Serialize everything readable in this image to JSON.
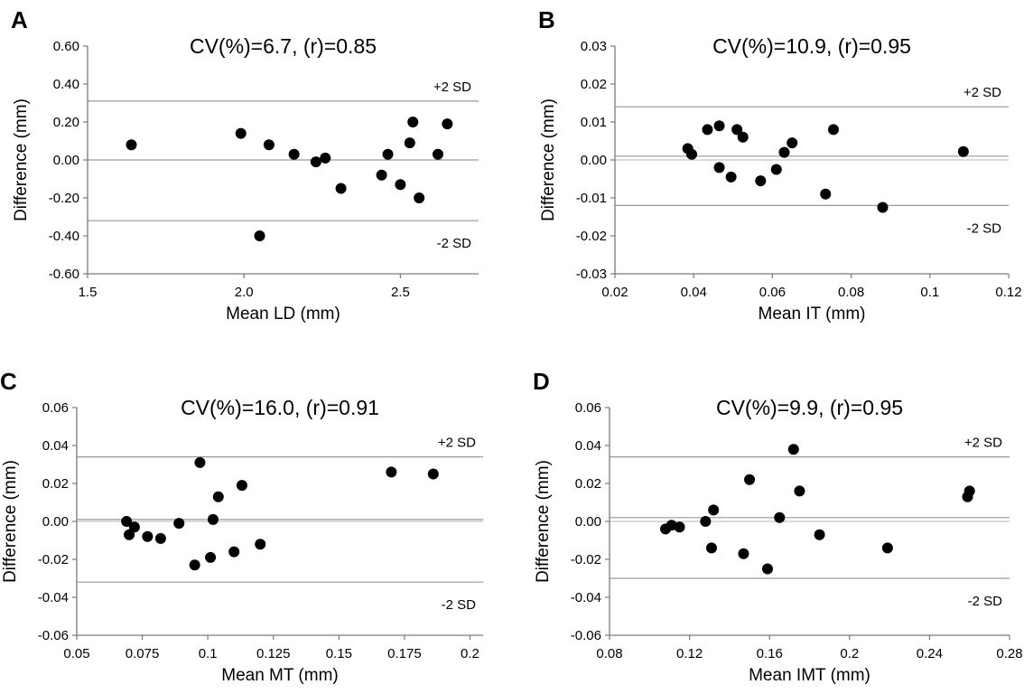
{
  "chart_data": [
    {
      "type": "scatter",
      "panel": "A",
      "title": "CV(%)=6.7, (r)=0.85",
      "xlabel": "Mean LD (mm)",
      "ylabel": "Difference (mm)",
      "xlim": [
        1.5,
        2.75
      ],
      "ylim": [
        -0.6,
        0.6
      ],
      "xticks": [
        1.5,
        2.0,
        2.5
      ],
      "xtick_labels": [
        "1.5",
        "2.0",
        "2.5"
      ],
      "yticks": [
        -0.6,
        -0.4,
        -0.2,
        0,
        0.2,
        0.4,
        0.6
      ],
      "ytick_labels": [
        "-0.60",
        "-0.40",
        "-0.20",
        "0.00",
        "0.20",
        "0.40",
        "0.60"
      ],
      "sd_labels": {
        "upper": "+2 SD",
        "lower": "-2 SD"
      },
      "lines": {
        "upper": 0.31,
        "mean": 0.0,
        "lower": -0.32
      },
      "points": [
        [
          1.64,
          0.08
        ],
        [
          1.99,
          0.14
        ],
        [
          2.05,
          -0.4
        ],
        [
          2.08,
          0.08
        ],
        [
          2.16,
          0.03
        ],
        [
          2.23,
          -0.01
        ],
        [
          2.26,
          0.01
        ],
        [
          2.31,
          -0.15
        ],
        [
          2.44,
          -0.08
        ],
        [
          2.46,
          0.03
        ],
        [
          2.5,
          -0.13
        ],
        [
          2.53,
          0.09
        ],
        [
          2.54,
          0.2
        ],
        [
          2.56,
          -0.2
        ],
        [
          2.62,
          0.03
        ],
        [
          2.65,
          0.19
        ]
      ]
    },
    {
      "type": "scatter",
      "panel": "B",
      "title": "CV(%)=10.9, (r)=0.95",
      "xlabel": "Mean IT (mm)",
      "ylabel": "Difference (mm)",
      "xlim": [
        0.02,
        0.12
      ],
      "ylim": [
        -0.03,
        0.03
      ],
      "xticks": [
        0.02,
        0.04,
        0.06,
        0.08,
        0.1,
        0.12
      ],
      "xtick_labels": [
        "0.02",
        "0.04",
        "0.06",
        "0.08",
        "0.1",
        "0.12"
      ],
      "yticks": [
        -0.03,
        -0.02,
        -0.01,
        0,
        0.01,
        0.02,
        0.03
      ],
      "ytick_labels": [
        "-0.03",
        "-0.02",
        "-0.01",
        "0.00",
        "0.01",
        "0.02",
        "0.03"
      ],
      "sd_labels": {
        "upper": "+2 SD",
        "lower": "-2 SD"
      },
      "lines": {
        "upper": 0.014,
        "mean": 0.001,
        "lower": -0.012
      },
      "points": [
        [
          0.0385,
          0.003
        ],
        [
          0.0395,
          0.0015
        ],
        [
          0.0435,
          0.008
        ],
        [
          0.0465,
          0.009
        ],
        [
          0.0465,
          -0.002
        ],
        [
          0.0495,
          -0.0045
        ],
        [
          0.051,
          0.008
        ],
        [
          0.0525,
          0.006
        ],
        [
          0.057,
          -0.0055
        ],
        [
          0.061,
          -0.0025
        ],
        [
          0.063,
          0.002
        ],
        [
          0.065,
          0.0045
        ],
        [
          0.0735,
          -0.009
        ],
        [
          0.0755,
          0.008
        ],
        [
          0.088,
          -0.0125
        ],
        [
          0.1085,
          0.0022
        ]
      ]
    },
    {
      "type": "scatter",
      "panel": "C",
      "title": "CV(%)=16.0, (r)=0.91",
      "xlabel": "Mean MT (mm)",
      "ylabel": "Difference (mm)",
      "xlim": [
        0.05,
        0.205
      ],
      "ylim": [
        -0.06,
        0.06
      ],
      "xticks": [
        0.05,
        0.075,
        0.1,
        0.125,
        0.15,
        0.175,
        0.2
      ],
      "xtick_labels": [
        "0.05",
        "0.075",
        "0.1",
        "0.125",
        "0.15",
        "0.175",
        "0.2"
      ],
      "yticks": [
        -0.06,
        -0.04,
        -0.02,
        0,
        0.02,
        0.04,
        0.06
      ],
      "ytick_labels": [
        "-0.06",
        "-0.04",
        "-0.02",
        "0.00",
        "0.02",
        "0.04",
        "0.06"
      ],
      "sd_labels": {
        "upper": "+2 SD",
        "lower": "-2 SD"
      },
      "lines": {
        "upper": 0.034,
        "mean": 0.001,
        "lower": -0.032
      },
      "points": [
        [
          0.069,
          0.0
        ],
        [
          0.07,
          -0.007
        ],
        [
          0.072,
          -0.003
        ],
        [
          0.077,
          -0.008
        ],
        [
          0.082,
          -0.009
        ],
        [
          0.089,
          -0.001
        ],
        [
          0.095,
          -0.023
        ],
        [
          0.097,
          0.031
        ],
        [
          0.101,
          -0.019
        ],
        [
          0.102,
          0.001
        ],
        [
          0.104,
          0.013
        ],
        [
          0.11,
          -0.016
        ],
        [
          0.113,
          0.019
        ],
        [
          0.12,
          -0.012
        ],
        [
          0.17,
          0.026
        ],
        [
          0.186,
          0.025
        ]
      ]
    },
    {
      "type": "scatter",
      "panel": "D",
      "title": "CV(%)=9.9, (r)=0.95",
      "xlabel": "Mean IMT (mm)",
      "ylabel": "Difference (mm)",
      "xlim": [
        0.08,
        0.28
      ],
      "ylim": [
        -0.06,
        0.06
      ],
      "xticks": [
        0.08,
        0.12,
        0.16,
        0.2,
        0.24,
        0.28
      ],
      "xtick_labels": [
        "0.08",
        "0.12",
        "0.16",
        "0.2",
        "0.24",
        "0.28"
      ],
      "yticks": [
        -0.06,
        -0.04,
        -0.02,
        0,
        0.02,
        0.04,
        0.06
      ],
      "ytick_labels": [
        "-0.06",
        "-0.04",
        "-0.02",
        "0.00",
        "0.02",
        "0.04",
        "0.06"
      ],
      "sd_labels": {
        "upper": "+2 SD",
        "lower": "-2 SD"
      },
      "lines": {
        "upper": 0.034,
        "mean": 0.002,
        "lower": -0.03
      },
      "points": [
        [
          0.108,
          -0.004
        ],
        [
          0.111,
          -0.002
        ],
        [
          0.115,
          -0.003
        ],
        [
          0.128,
          0.0
        ],
        [
          0.131,
          -0.014
        ],
        [
          0.132,
          0.006
        ],
        [
          0.147,
          -0.017
        ],
        [
          0.15,
          0.022
        ],
        [
          0.159,
          -0.025
        ],
        [
          0.165,
          0.002
        ],
        [
          0.172,
          0.038
        ],
        [
          0.175,
          0.016
        ],
        [
          0.185,
          -0.007
        ],
        [
          0.219,
          -0.014
        ],
        [
          0.259,
          0.013
        ],
        [
          0.26,
          0.016
        ]
      ]
    }
  ]
}
